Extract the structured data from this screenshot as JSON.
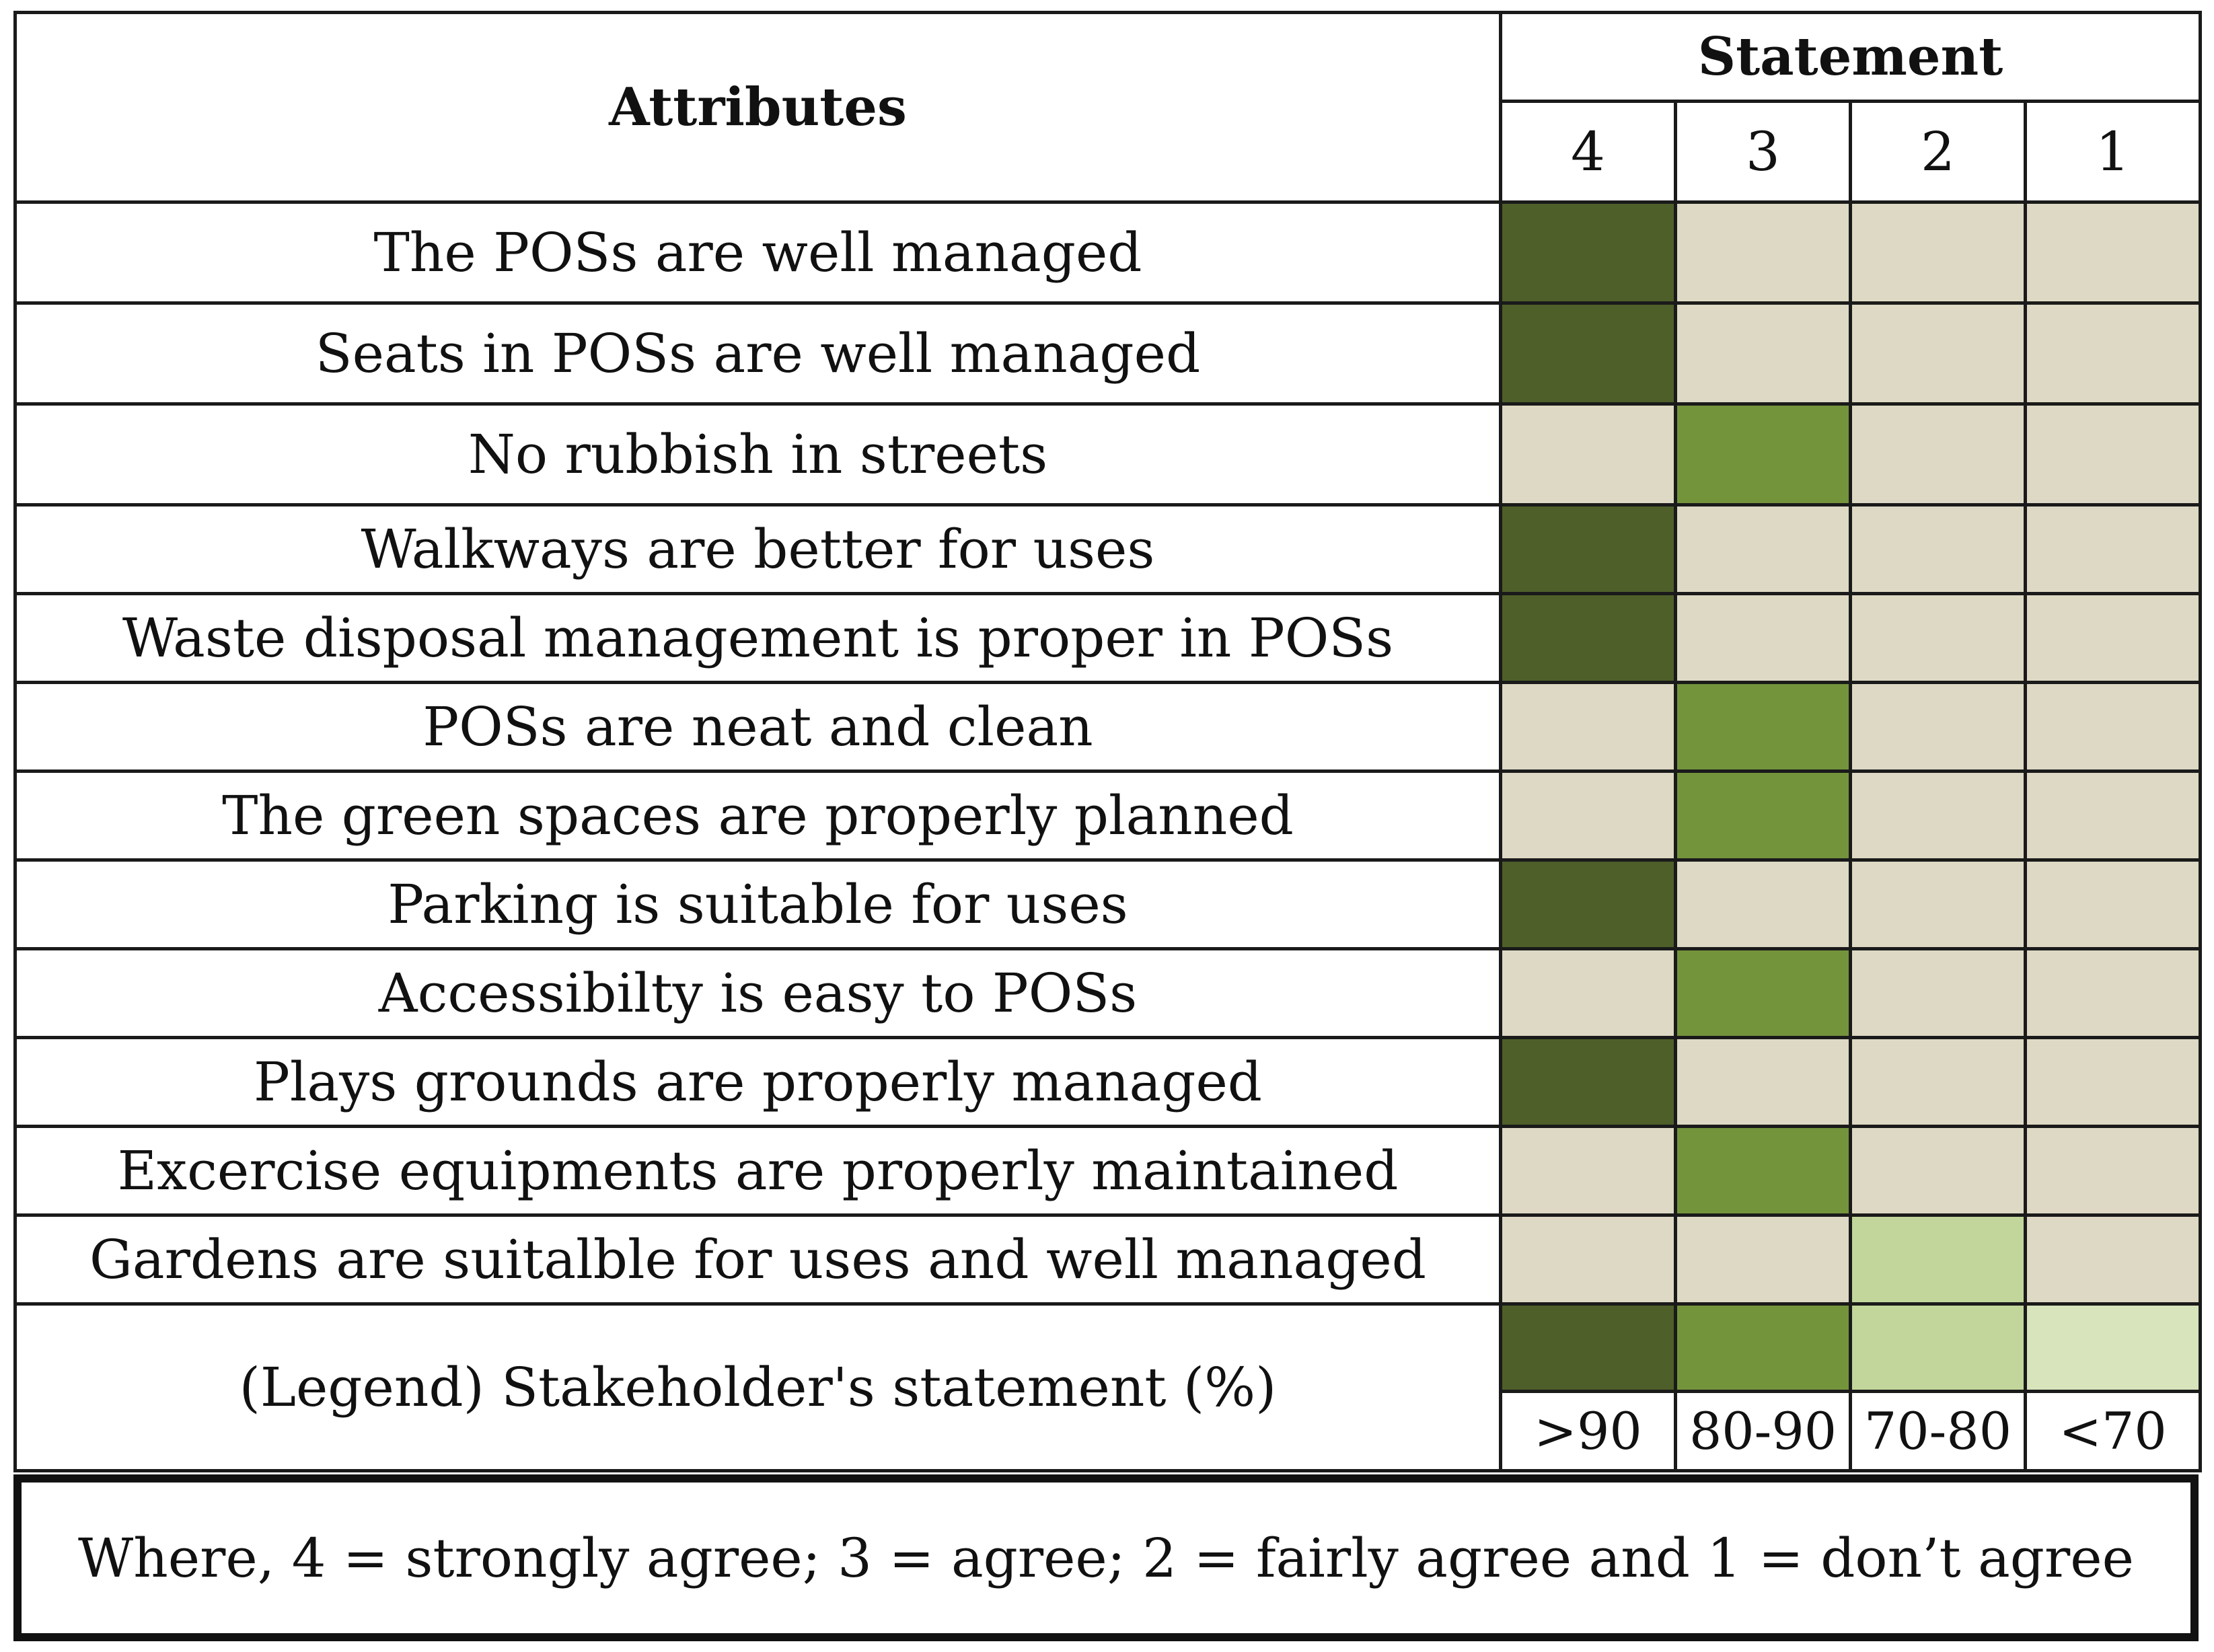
{
  "table": {
    "attributes_header": "Attributes",
    "statement_header": "Statement",
    "statement_levels": [
      "4",
      "3",
      "2",
      "1"
    ],
    "rows": [
      {
        "attribute": "The POSs are well managed",
        "statement": 4
      },
      {
        "attribute": "Seats in POSs are well managed",
        "statement": 4
      },
      {
        "attribute": "No rubbish in streets",
        "statement": 3
      },
      {
        "attribute": "Walkways are better for uses",
        "statement": 4
      },
      {
        "attribute": "Waste disposal management is proper in POSs",
        "statement": 4
      },
      {
        "attribute": "POSs are neat and clean",
        "statement": 3
      },
      {
        "attribute": "The green spaces are properly planned",
        "statement": 3
      },
      {
        "attribute": "Parking is suitable for uses",
        "statement": 4
      },
      {
        "attribute": "Accessibilty is easy to POSs",
        "statement": 3
      },
      {
        "attribute": "Plays grounds are properly managed",
        "statement": 4
      },
      {
        "attribute": "Excercise equipments are properly maintained",
        "statement": 3
      },
      {
        "attribute": "Gardens are suitalble for uses and well managed",
        "statement": 2
      }
    ],
    "legend": {
      "label": "(Legend) Stakeholder's statement (%)",
      "ranges": [
        ">90",
        "80-90",
        "70-80",
        "<70"
      ]
    }
  },
  "colors": {
    "level_4": "#4e5f29",
    "level_3": "#74943c",
    "level_2": "#c2d69b",
    "level_1": "#d7e4bc",
    "empty": "#ddd9c4"
  },
  "note": "Where, 4 = strongly agree; 3 = agree; 2 = fairly agree and 1 = don’t agree"
}
